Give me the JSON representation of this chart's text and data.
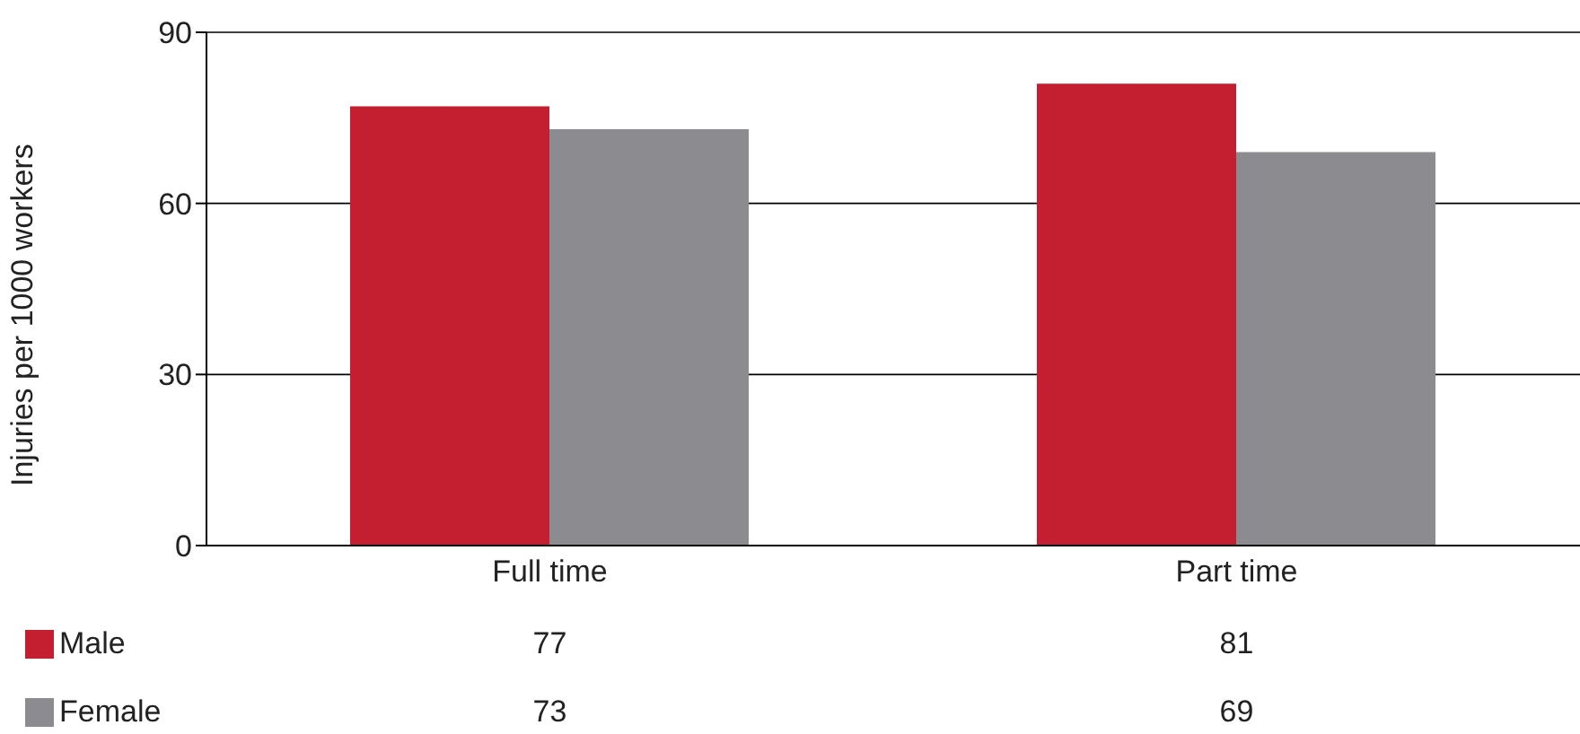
{
  "chart_data": {
    "type": "bar",
    "ylabel": "Injuries per 1000 workers",
    "categories": [
      "Full time",
      "Part time"
    ],
    "series": [
      {
        "name": "Male",
        "color": "#c41f30",
        "values": [
          77,
          81
        ]
      },
      {
        "name": "Female",
        "color": "#8c8c90",
        "values": [
          73,
          69
        ]
      }
    ],
    "ylim": [
      0,
      90
    ],
    "yticks": [
      0,
      30,
      60,
      90
    ],
    "grid": "y",
    "legend": "bottom left",
    "data_labels": true
  }
}
